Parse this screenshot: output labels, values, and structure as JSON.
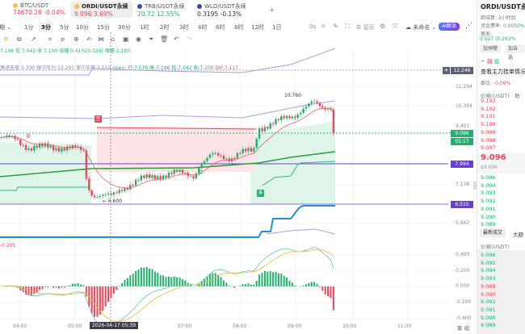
{
  "tickers": [
    {
      "name": "BTC/USDT",
      "price": "74670.26",
      "change": "-0.04%",
      "dir": "down",
      "icon": "bitcoin-icon"
    },
    {
      "name": "ORDI/USDT永续",
      "price": "9.096",
      "change": "3.69%",
      "dir": "down",
      "icon": "ordi-icon"
    },
    {
      "name": "TRB/USDT永续",
      "price": "20.72",
      "change": "12.55%",
      "dir": "up",
      "icon": "trb-icon"
    },
    {
      "name": "WLD/USDT永续",
      "price": "0.3195",
      "change": "-0.13%",
      "dir": "flat",
      "icon": "wld-icon"
    }
  ],
  "add_tab": "+",
  "intervals": {
    "period": "期 ⌄",
    "items": [
      "1分",
      "3分",
      "5分",
      "10分",
      "15分",
      "30分",
      "1时",
      "2时",
      "3时",
      "4时",
      "6时",
      "8时",
      "12时",
      "1日"
    ],
    "active": "3分"
  },
  "toolbar": {
    "countdown": "0s",
    "display": "显示",
    "layout_name": "未命名 ⌄",
    "ai_button": "AI解读"
  },
  "legend": {
    "candle": "7.196 低 7.042 收 7.100 涨幅 0.41%(0.029) 振幅 2.18%",
    "support": "激进支撑:5.330 保守压力:12.291 保守支撑:3.010",
    "open": "open: 开:7.070 高:7.196 低:7.042 收:7.100",
    "dif": "DIF:7.117",
    "macd": "-0.205"
  },
  "markers": {
    "sell": "空",
    "buy": "多",
    "sell_small": "卖",
    "buy_small": "买",
    "high": "10.760",
    "low": "← 6.600"
  },
  "price_axis": {
    "ticks": [
      "11.294",
      "10.304",
      "9.401",
      "7.138",
      "5.942"
    ],
    "top_marker": "12.246",
    "current": "9.096",
    "countdown": "02:17",
    "line1": "7.994",
    "line2": "6.515",
    "scale": "log"
  },
  "macd_axis": [
    "0.400",
    "0.200",
    "0.000",
    "-0.200",
    "-0.400"
  ],
  "time_axis": [
    "04:00",
    "05:00",
    "07:00",
    "08:00",
    "09:00",
    "10:00",
    "11:00"
  ],
  "crosshair_time": "2026-04-17 05:39",
  "corner": "筹 缩",
  "colors": {
    "up": "#20b26c",
    "down": "#f0445a",
    "band": "#a99cf0",
    "level": "#6a3fd6",
    "support_line": "#1e90e0",
    "ma": "#2e9e3e"
  },
  "chart_data": {
    "type": "candlestick",
    "interval": "3分",
    "yscale": "log",
    "ylim": [
      5.9,
      12.5
    ],
    "price_path": [
      [
        "03:38",
        8.85
      ],
      [
        "03:55",
        8.9
      ],
      [
        "04:05",
        8.6
      ],
      [
        "04:10",
        8.45
      ],
      [
        "04:30",
        8.55
      ],
      [
        "05:00",
        8.45
      ],
      [
        "05:10",
        8.35
      ],
      [
        "05:13",
        7.1
      ],
      [
        "05:20",
        6.8
      ],
      [
        "05:40",
        6.75
      ],
      [
        "05:50",
        7.0
      ],
      [
        "06:10",
        7.3
      ],
      [
        "06:30",
        7.45
      ],
      [
        "06:50",
        7.55
      ],
      [
        "07:10",
        7.45
      ],
      [
        "07:15",
        7.8
      ],
      [
        "07:30",
        8.2
      ],
      [
        "07:50",
        8.1
      ],
      [
        "08:00",
        8.3
      ],
      [
        "08:15",
        8.35
      ],
      [
        "08:20",
        9.3
      ],
      [
        "08:40",
        9.6
      ],
      [
        "09:00",
        9.9
      ],
      [
        "09:10",
        10.3
      ],
      [
        "09:20",
        10.5
      ],
      [
        "09:30",
        10.2
      ],
      [
        "09:40",
        10.35
      ],
      [
        "09:45",
        9.096
      ]
    ]
  },
  "panel": {
    "title": "ORDI/USDT永续",
    "settle": "距结算: 2小时后",
    "funding_label": "资金费率:",
    "funding": "0.0050%",
    "basis_label": "基差:",
    "basis": "0.027 (0.263%",
    "alert_btn": "加预警",
    "fav_btn": "加自选",
    "depth_link": "查看主力挂单情况",
    "ratio_label": "委比:",
    "ratio": "-0.06%",
    "price_header": "价格(USDT)",
    "qty_header": "数",
    "asks": [
      "9.103",
      "9.102",
      "9.101",
      "9.100",
      "9.099",
      "9.098",
      "9.097"
    ],
    "last": "9.096",
    "mark": "$9.096",
    "bids": [
      "9.096",
      "9.094",
      "9.093",
      "9.092",
      "9.091",
      "9.090",
      "9.089"
    ],
    "trades_tab": "最新成交",
    "big_tab": "大额",
    "trades": [
      [
        "9.096",
        "up"
      ],
      [
        "9.095",
        "up"
      ],
      [
        "9.094",
        "up"
      ],
      [
        "9.093",
        "up"
      ],
      [
        "9.089",
        "down"
      ],
      [
        "9.090",
        "down"
      ],
      [
        "9.092",
        "up"
      ],
      [
        "9.091",
        "up"
      ],
      [
        "9.090",
        "up"
      ],
      [
        "9.089",
        "up"
      ]
    ]
  }
}
